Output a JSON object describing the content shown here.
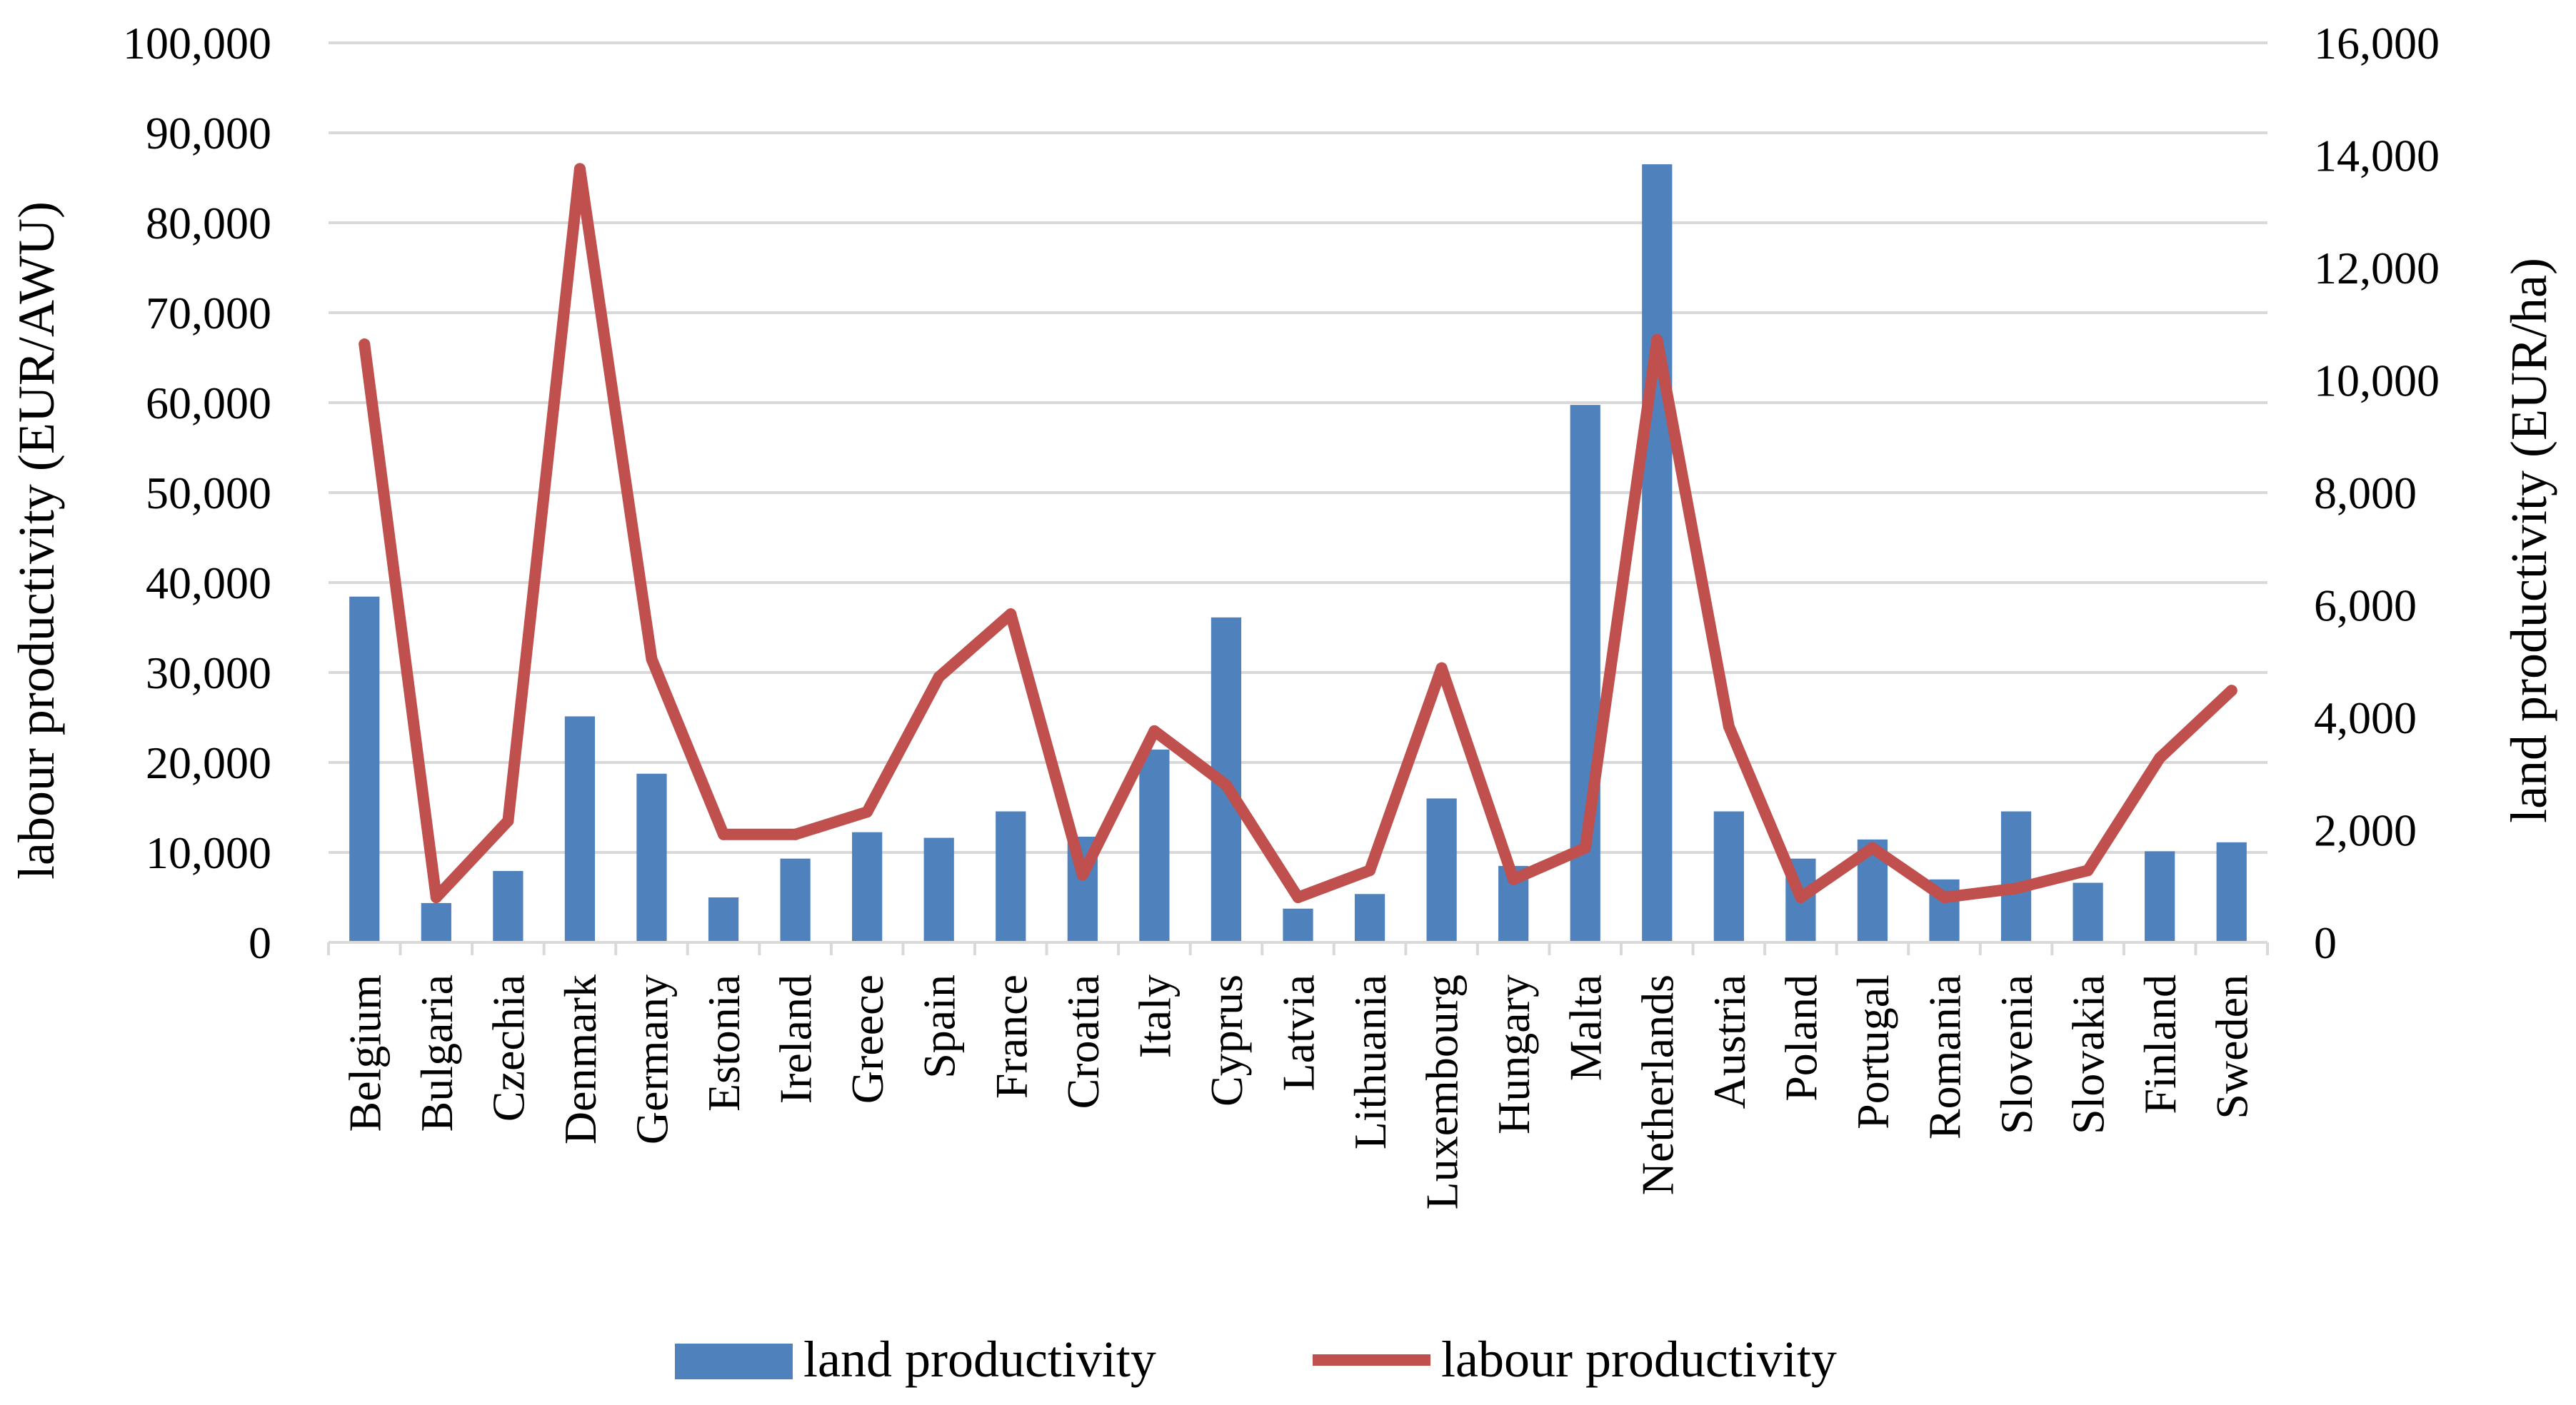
{
  "chart_data": {
    "type": "bar+line",
    "title": "",
    "categories": [
      "Belgium",
      "Bulgaria",
      "Czechia",
      "Denmark",
      "Germany",
      "Estonia",
      "Ireland",
      "Greece",
      "Spain",
      "France",
      "Croatia",
      "Italy",
      "Cyprus",
      "Latvia",
      "Lithuania",
      "Luxembourg",
      "Hungary",
      "Malta",
      "Netherlands",
      "Austria",
      "Poland",
      "Portugal",
      "Romania",
      "Slovenia",
      "Slovakia",
      "Finland",
      "Sweden"
    ],
    "series": [
      {
        "name": "land productivity",
        "type": "bar",
        "axis": "right",
        "color": "#4F81BD",
        "values": [
          6150,
          700,
          1270,
          4020,
          3000,
          800,
          1490,
          1960,
          1860,
          2330,
          1880,
          3430,
          5780,
          600,
          860,
          2560,
          1360,
          9560,
          13840,
          2330,
          1490,
          1830,
          1120,
          2330,
          1060,
          1620,
          1780
        ]
      },
      {
        "name": "labour productivity",
        "type": "line",
        "axis": "left",
        "color": "#C0504D",
        "values": [
          66500,
          5000,
          13500,
          86000,
          31500,
          12000,
          12000,
          14500,
          29500,
          36500,
          7500,
          23500,
          17500,
          5000,
          8000,
          30500,
          7000,
          10500,
          67000,
          24000,
          5000,
          10500,
          5000,
          6000,
          8000,
          20500,
          28000
        ]
      }
    ],
    "ylabel": "labour productivity (EUR/AWU)",
    "ylim": [
      0,
      100000
    ],
    "y_ticks": [
      "0",
      "10,000",
      "20,000",
      "30,000",
      "40,000",
      "50,000",
      "60,000",
      "70,000",
      "80,000",
      "90,000",
      "100,000"
    ],
    "y2label": "land productivity (EUR/ha)",
    "y2lim": [
      0,
      16000
    ],
    "y2_ticks": [
      "0",
      "2,000",
      "4,000",
      "6,000",
      "8,000",
      "10,000",
      "12,000",
      "14,000",
      "16,000"
    ],
    "grid": true,
    "legend": [
      "land productivity",
      "labour productivity"
    ],
    "legend_position": "bottom"
  }
}
